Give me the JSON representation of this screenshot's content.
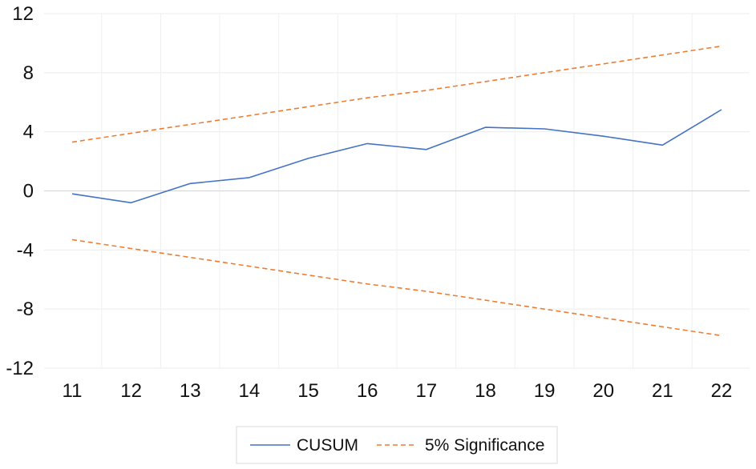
{
  "chart_data": {
    "type": "line",
    "x": [
      11,
      12,
      13,
      14,
      15,
      16,
      17,
      18,
      19,
      20,
      21,
      22
    ],
    "x_tick_labels": [
      "11",
      "12",
      "13",
      "14",
      "15",
      "16",
      "17",
      "18",
      "19",
      "20",
      "21",
      "22"
    ],
    "y_ticks": [
      12,
      8,
      4,
      0,
      -4,
      -8,
      -12
    ],
    "y_tick_labels": [
      "12",
      "8",
      "4",
      "0",
      "-4",
      "-8",
      "-12"
    ],
    "ylim": [
      -12,
      12
    ],
    "grid": true,
    "legend_position": "bottom",
    "series": [
      {
        "name": "CUSUM",
        "color": "#4472C4",
        "style": "solid",
        "values": [
          -0.2,
          -0.8,
          0.5,
          0.9,
          2.2,
          3.2,
          2.8,
          4.3,
          4.2,
          3.7,
          3.1,
          5.5
        ]
      },
      {
        "name": "5% Significance",
        "color": "#ED7D31",
        "style": "dashed",
        "values": [
          3.3,
          3.9,
          4.5,
          5.1,
          5.7,
          6.3,
          6.8,
          7.4,
          8.0,
          8.6,
          9.2,
          9.8
        ]
      },
      {
        "name": "",
        "color": "#ED7D31",
        "style": "dashed",
        "values": [
          -3.3,
          -3.9,
          -4.5,
          -5.1,
          -5.7,
          -6.3,
          -6.8,
          -7.4,
          -8.0,
          -8.6,
          -9.2,
          -9.8
        ]
      }
    ]
  },
  "legend": {
    "items": [
      {
        "label": "CUSUM",
        "series_index": 0
      },
      {
        "label": "5% Significance",
        "series_index": 1
      }
    ]
  }
}
